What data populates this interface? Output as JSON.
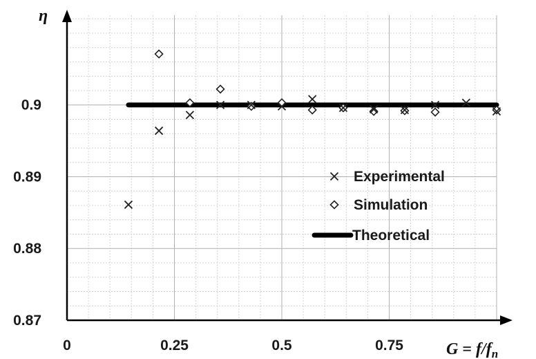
{
  "chart_data": {
    "type": "scatter",
    "title": "",
    "xlabel": "G = f/f_n",
    "xlabel_parts": {
      "lhs": "G",
      "eq": " = ",
      "f": "f",
      "slash": "/",
      "fn": "f",
      "sub": "n"
    },
    "ylabel": "η",
    "xlim": [
      0,
      1
    ],
    "ylim": [
      0.87,
      0.9125
    ],
    "x_ticks": [
      0,
      0.25,
      0.5,
      0.75
    ],
    "x_tick_labels": [
      "0",
      "0.25",
      "0.5",
      "0.75"
    ],
    "y_ticks": [
      0.87,
      0.88,
      0.89,
      0.9
    ],
    "y_tick_labels": [
      "0.87",
      "0.88",
      "0.89",
      "0.9"
    ],
    "grid": true,
    "legend_position": "right",
    "series": [
      {
        "name": "Experimental",
        "marker": "x",
        "color": "#222222",
        "points": [
          [
            0.143,
            0.8861
          ],
          [
            0.214,
            0.8964
          ],
          [
            0.286,
            0.8986
          ],
          [
            0.357,
            0.9
          ],
          [
            0.429,
            0.9
          ],
          [
            0.5,
            0.8998
          ],
          [
            0.571,
            0.9008
          ],
          [
            0.643,
            0.8996
          ],
          [
            0.714,
            0.8994
          ],
          [
            0.786,
            0.8993
          ],
          [
            0.857,
            0.9
          ],
          [
            0.929,
            0.9003
          ],
          [
            1.0,
            0.8991
          ]
        ]
      },
      {
        "name": "Simulation",
        "marker": "diamond",
        "color": "#222222",
        "points": [
          [
            0.214,
            0.9071
          ],
          [
            0.286,
            0.9003
          ],
          [
            0.357,
            0.9022
          ],
          [
            0.429,
            0.8998
          ],
          [
            0.5,
            0.9003
          ],
          [
            0.571,
            0.8993
          ],
          [
            0.643,
            0.8996
          ],
          [
            0.714,
            0.8991
          ],
          [
            0.786,
            0.8992
          ],
          [
            0.857,
            0.899
          ],
          [
            1.0,
            0.8993
          ]
        ]
      },
      {
        "name": "Theoretical",
        "marker": "line",
        "color": "#000000",
        "points": [
          [
            0.143,
            0.9
          ],
          [
            1.0,
            0.9
          ]
        ]
      }
    ]
  }
}
